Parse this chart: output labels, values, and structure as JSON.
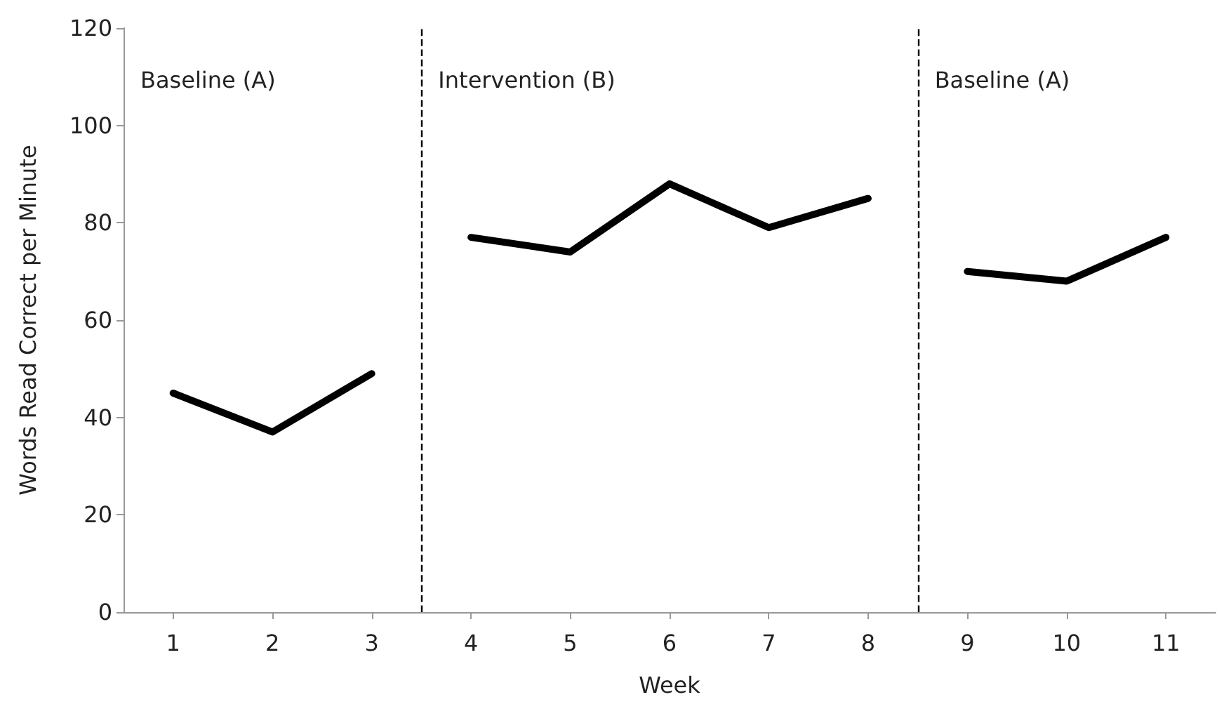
{
  "chart_data": {
    "type": "line",
    "xlabel": "Week",
    "ylabel": "Words Read Correct per Minute",
    "x": [
      1,
      2,
      3,
      4,
      5,
      6,
      7,
      8,
      9,
      10,
      11
    ],
    "xlim": [
      0.5,
      11.5
    ],
    "xticks": [
      1,
      2,
      3,
      4,
      5,
      6,
      7,
      8,
      9,
      10,
      11
    ],
    "ylim": [
      0,
      120
    ],
    "yticks": [
      0,
      20,
      40,
      60,
      80,
      100,
      120
    ],
    "series": [
      {
        "color": "#000000",
        "values": [
          45,
          37,
          49,
          null,
          null,
          null,
          null,
          null,
          null,
          null,
          null
        ]
      },
      {
        "color": "#000000",
        "values": [
          null,
          null,
          null,
          77,
          74,
          88,
          79,
          85,
          null,
          null,
          null
        ]
      },
      {
        "color": "#000000",
        "values": [
          null,
          null,
          null,
          null,
          null,
          null,
          null,
          null,
          70,
          68,
          77
        ]
      }
    ],
    "ref_lines": [
      {
        "axis": "x",
        "value": 3.5,
        "color": "#000000",
        "line_style": "dashed"
      },
      {
        "axis": "x",
        "value": 8.5,
        "color": "#000000",
        "line_style": "dashed"
      }
    ],
    "annotations": [
      "Baseline (A)",
      "Intervention (B)",
      "Baseline (A)"
    ],
    "grid": false,
    "marker": "none",
    "line_style": "solid"
  }
}
